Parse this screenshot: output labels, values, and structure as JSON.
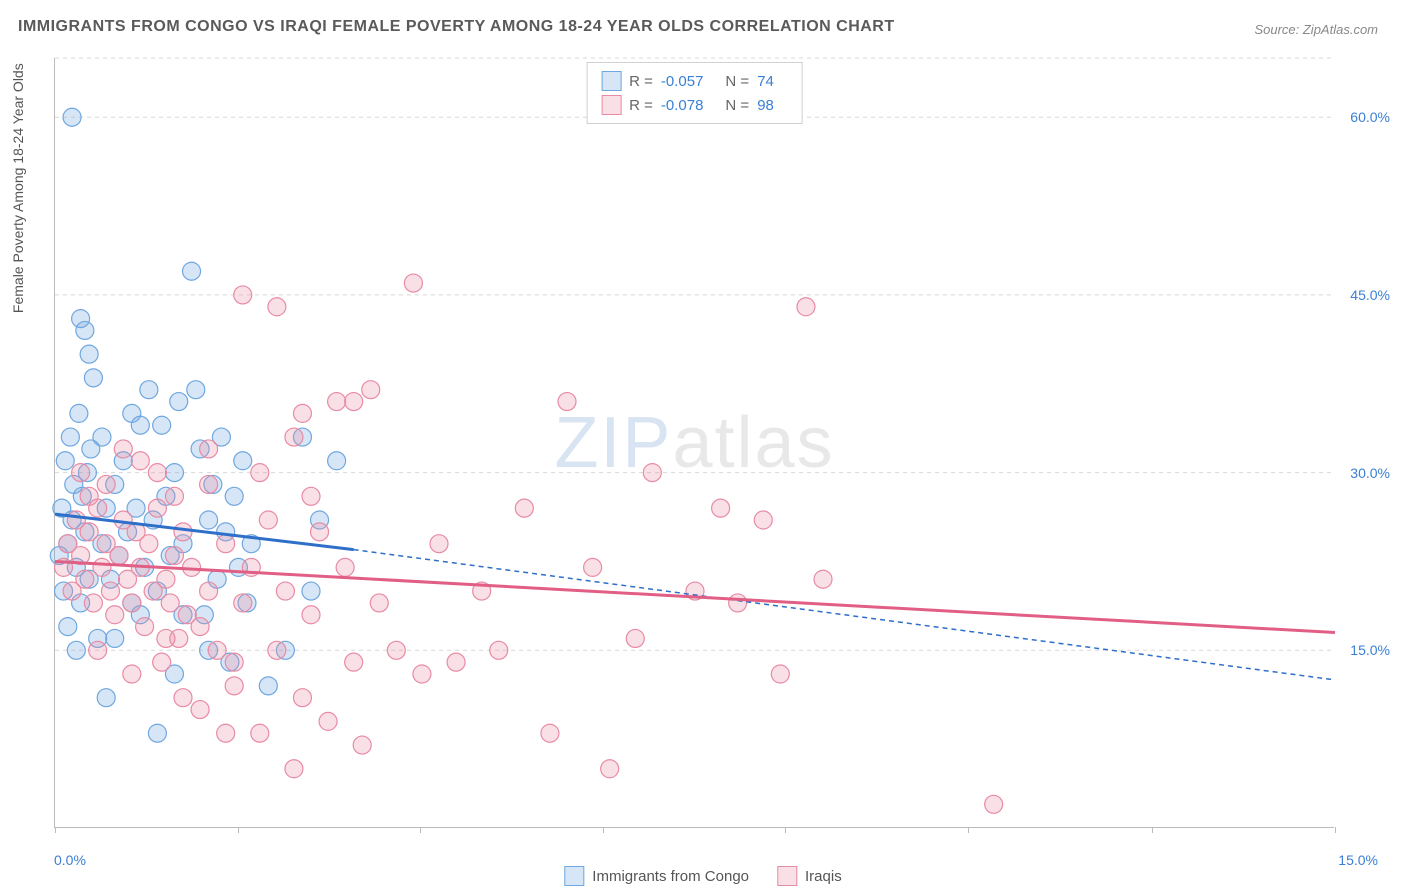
{
  "title": "IMMIGRANTS FROM CONGO VS IRAQI FEMALE POVERTY AMONG 18-24 YEAR OLDS CORRELATION CHART",
  "source": "Source: ZipAtlas.com",
  "watermark_part1": "ZIP",
  "watermark_part2": "atlas",
  "y_axis_title": "Female Poverty Among 18-24 Year Olds",
  "chart": {
    "type": "scatter",
    "xlim": [
      0,
      15
    ],
    "ylim": [
      0,
      65
    ],
    "x_ticks": [
      0,
      2.14,
      4.28,
      6.42,
      8.56,
      10.7,
      12.85,
      15
    ],
    "x_tick_labels": {
      "0": "0.0%",
      "15": "15.0%"
    },
    "y_ticks": [
      15,
      30,
      45,
      60
    ],
    "y_tick_labels": [
      "15.0%",
      "30.0%",
      "45.0%",
      "60.0%"
    ],
    "grid_color": "#d8d8d8",
    "background_color": "#ffffff",
    "axis_color": "#bbbbbb",
    "tick_label_color": "#3a7fd5",
    "marker_radius": 9,
    "marker_stroke_width": 1.2,
    "marker_fill_opacity": 0.28,
    "line_width": 3,
    "dash_pattern": "5 4",
    "series": [
      {
        "name": "Immigrants from Congo",
        "color": "#6fa7e0",
        "line_color": "#2d6fc9",
        "R": "-0.057",
        "N": "74",
        "regression_solid": {
          "x1": 0,
          "y1": 26.5,
          "x2": 3.5,
          "y2": 23.5
        },
        "regression_dashed": {
          "x1": 3.5,
          "y1": 23.5,
          "x2": 15,
          "y2": 12.5
        },
        "points": [
          [
            0.05,
            23
          ],
          [
            0.08,
            27
          ],
          [
            0.1,
            20
          ],
          [
            0.12,
            31
          ],
          [
            0.15,
            24
          ],
          [
            0.18,
            33
          ],
          [
            0.2,
            26
          ],
          [
            0.22,
            29
          ],
          [
            0.25,
            22
          ],
          [
            0.28,
            35
          ],
          [
            0.3,
            19
          ],
          [
            0.32,
            28
          ],
          [
            0.35,
            25
          ],
          [
            0.38,
            30
          ],
          [
            0.4,
            21
          ],
          [
            0.42,
            32
          ],
          [
            0.2,
            60
          ],
          [
            0.3,
            43
          ],
          [
            0.35,
            42
          ],
          [
            0.4,
            40
          ],
          [
            0.5,
            16
          ],
          [
            0.55,
            24
          ],
          [
            0.6,
            27
          ],
          [
            0.65,
            21
          ],
          [
            0.7,
            29
          ],
          [
            0.75,
            23
          ],
          [
            0.8,
            31
          ],
          [
            0.85,
            25
          ],
          [
            0.9,
            19
          ],
          [
            0.95,
            27
          ],
          [
            1.0,
            34
          ],
          [
            1.05,
            22
          ],
          [
            1.1,
            37
          ],
          [
            1.15,
            26
          ],
          [
            1.2,
            20
          ],
          [
            1.25,
            34
          ],
          [
            1.3,
            28
          ],
          [
            1.35,
            23
          ],
          [
            1.4,
            30
          ],
          [
            1.45,
            36
          ],
          [
            1.5,
            24
          ],
          [
            1.6,
            47
          ],
          [
            1.65,
            37
          ],
          [
            1.7,
            32
          ],
          [
            1.75,
            18
          ],
          [
            1.8,
            26
          ],
          [
            1.85,
            29
          ],
          [
            1.9,
            21
          ],
          [
            1.95,
            33
          ],
          [
            2.0,
            25
          ],
          [
            2.05,
            14
          ],
          [
            2.1,
            28
          ],
          [
            2.15,
            22
          ],
          [
            2.2,
            31
          ],
          [
            2.25,
            19
          ],
          [
            2.5,
            12
          ],
          [
            2.7,
            15
          ],
          [
            2.9,
            33
          ],
          [
            3.0,
            20
          ],
          [
            3.1,
            26
          ],
          [
            3.3,
            31
          ],
          [
            1.2,
            8
          ],
          [
            0.6,
            11
          ],
          [
            1.4,
            13
          ],
          [
            0.15,
            17
          ],
          [
            0.45,
            38
          ],
          [
            0.55,
            33
          ],
          [
            0.9,
            35
          ],
          [
            1.5,
            18
          ],
          [
            1.8,
            15
          ],
          [
            2.3,
            24
          ],
          [
            0.25,
            15
          ],
          [
            0.7,
            16
          ],
          [
            1.0,
            18
          ]
        ]
      },
      {
        "name": "Iraqis",
        "color": "#e88ba5",
        "line_color": "#e15e84",
        "R": "-0.078",
        "N": "98",
        "regression_solid": {
          "x1": 0,
          "y1": 22.5,
          "x2": 15,
          "y2": 16.5
        },
        "regression_dashed": null,
        "points": [
          [
            0.1,
            22
          ],
          [
            0.15,
            24
          ],
          [
            0.2,
            20
          ],
          [
            0.25,
            26
          ],
          [
            0.3,
            23
          ],
          [
            0.35,
            21
          ],
          [
            0.4,
            25
          ],
          [
            0.45,
            19
          ],
          [
            0.5,
            27
          ],
          [
            0.55,
            22
          ],
          [
            0.6,
            24
          ],
          [
            0.65,
            20
          ],
          [
            0.7,
            18
          ],
          [
            0.75,
            23
          ],
          [
            0.8,
            26
          ],
          [
            0.85,
            21
          ],
          [
            0.9,
            19
          ],
          [
            0.95,
            25
          ],
          [
            1.0,
            22
          ],
          [
            1.05,
            17
          ],
          [
            1.1,
            24
          ],
          [
            1.15,
            20
          ],
          [
            1.2,
            27
          ],
          [
            1.25,
            14
          ],
          [
            1.3,
            21
          ],
          [
            1.35,
            19
          ],
          [
            1.4,
            23
          ],
          [
            1.45,
            16
          ],
          [
            1.5,
            25
          ],
          [
            1.55,
            18
          ],
          [
            1.6,
            22
          ],
          [
            1.7,
            10
          ],
          [
            1.8,
            20
          ],
          [
            1.9,
            15
          ],
          [
            2.0,
            24
          ],
          [
            2.1,
            12
          ],
          [
            2.2,
            19
          ],
          [
            2.3,
            22
          ],
          [
            2.4,
            8
          ],
          [
            2.5,
            26
          ],
          [
            2.6,
            15
          ],
          [
            2.7,
            20
          ],
          [
            2.8,
            33
          ],
          [
            2.9,
            11
          ],
          [
            3.0,
            18
          ],
          [
            3.1,
            25
          ],
          [
            3.2,
            9
          ],
          [
            3.3,
            36
          ],
          [
            3.4,
            22
          ],
          [
            3.5,
            14
          ],
          [
            3.6,
            7
          ],
          [
            3.7,
            37
          ],
          [
            3.8,
            19
          ],
          [
            4.0,
            15
          ],
          [
            4.2,
            46
          ],
          [
            4.3,
            13
          ],
          [
            4.5,
            24
          ],
          [
            4.7,
            14
          ],
          [
            5.0,
            20
          ],
          [
            5.2,
            15
          ],
          [
            5.5,
            27
          ],
          [
            5.8,
            8
          ],
          [
            6.0,
            36
          ],
          [
            6.3,
            22
          ],
          [
            6.5,
            5
          ],
          [
            6.8,
            16
          ],
          [
            7.0,
            30
          ],
          [
            7.5,
            20
          ],
          [
            7.8,
            27
          ],
          [
            8.0,
            19
          ],
          [
            8.3,
            26
          ],
          [
            8.5,
            13
          ],
          [
            8.8,
            44
          ],
          [
            9.0,
            21
          ],
          [
            11.0,
            2
          ],
          [
            2.2,
            45
          ],
          [
            2.6,
            44
          ],
          [
            1.8,
            29
          ],
          [
            2.9,
            35
          ],
          [
            3.5,
            36
          ],
          [
            0.3,
            30
          ],
          [
            0.8,
            32
          ],
          [
            1.2,
            30
          ],
          [
            1.5,
            11
          ],
          [
            2.0,
            8
          ],
          [
            2.8,
            5
          ],
          [
            0.5,
            15
          ],
          [
            0.9,
            13
          ],
          [
            1.3,
            16
          ],
          [
            1.7,
            17
          ],
          [
            2.1,
            14
          ],
          [
            0.4,
            28
          ],
          [
            0.6,
            29
          ],
          [
            1.0,
            31
          ],
          [
            1.4,
            28
          ],
          [
            1.8,
            32
          ],
          [
            2.4,
            30
          ],
          [
            3.0,
            28
          ]
        ]
      }
    ]
  },
  "legend": {
    "series1": "Immigrants from Congo",
    "series2": "Iraqis"
  },
  "stats_labels": {
    "R": "R =",
    "N": "N ="
  }
}
